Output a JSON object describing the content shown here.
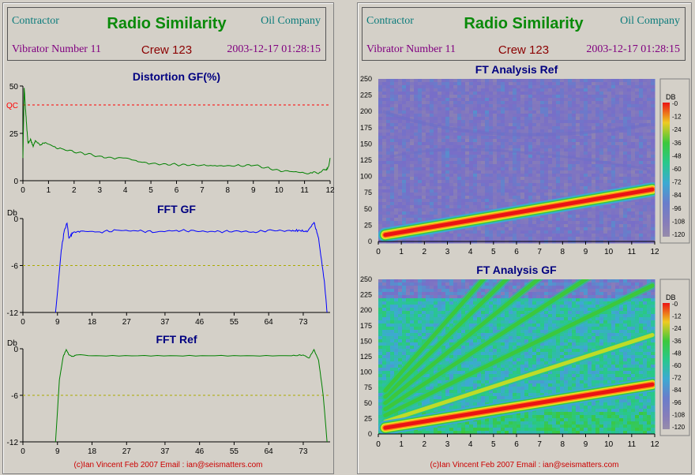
{
  "header": {
    "contractor": "Contractor",
    "title": "Radio Similarity",
    "company": "Oil Company",
    "vibrator": "Vibrator Number 11",
    "crew": "Crew 123",
    "timestamp": "2003-12-17 01:28:15"
  },
  "footer": "(c)Ian Vincent Feb 2007 Email : ian@seismatters.com",
  "colors": {
    "background": "#d4d0c8",
    "qc_line": "#ff0000",
    "distortion": "#008000",
    "fft_gf": "#0000ff",
    "fft_ref": "#008000",
    "threshold": "#aaaa00"
  },
  "chart_data": [
    {
      "type": "line",
      "title": "Distortion GF(%)",
      "ylabel": "",
      "xlim": [
        0,
        12
      ],
      "ylim": [
        0,
        50
      ],
      "x_ticks": [
        "0",
        "1",
        "2",
        "3",
        "4",
        "5",
        "6",
        "7",
        "8",
        "9",
        "10",
        "11",
        "12"
      ],
      "y_ticks": [
        "0",
        "25",
        "50"
      ],
      "qc_label": "QC",
      "qc_value": 40,
      "x": [
        0,
        0.05,
        0.1,
        0.15,
        0.2,
        0.3,
        0.4,
        0.5,
        0.7,
        0.9,
        1.2,
        1.5,
        2,
        2.5,
        3,
        3.5,
        4,
        4.5,
        5,
        5.5,
        6,
        6.5,
        7,
        7.5,
        8,
        8.5,
        9,
        9.5,
        10,
        10.5,
        11,
        11.3,
        11.6,
        11.85,
        11.95,
        12
      ],
      "values": [
        12,
        49,
        38,
        28,
        20,
        22,
        18,
        21,
        19,
        20,
        18,
        17,
        15,
        14,
        13,
        12,
        12,
        10,
        9,
        9,
        8.5,
        8,
        8.2,
        8,
        8,
        7.8,
        8,
        7,
        5.5,
        4.8,
        4,
        4,
        4.5,
        6,
        8,
        12
      ],
      "grid": false
    },
    {
      "type": "line",
      "title": "FFT GF",
      "ylabel": "Db",
      "xlim": [
        0,
        80
      ],
      "ylim": [
        -12,
        0
      ],
      "x_ticks": [
        "0",
        "9",
        "18",
        "27",
        "37",
        "46",
        "55",
        "64",
        "73"
      ],
      "y_ticks": [
        "0",
        "-6",
        "-12"
      ],
      "threshold": -6,
      "x": [
        8.5,
        10,
        10.8,
        11.5,
        12,
        13,
        15,
        20,
        25,
        30,
        35,
        40,
        45,
        50,
        55,
        60,
        65,
        70,
        72,
        74,
        75.8,
        77,
        78.5,
        79.2
      ],
      "values": [
        -12,
        -4,
        -1.5,
        -0.6,
        -2.5,
        -1.8,
        -1.6,
        -1.7,
        -1.5,
        -1.6,
        -1.7,
        -1.5,
        -1.6,
        -1.7,
        -1.6,
        -1.7,
        -1.5,
        -1.6,
        -1.5,
        -1.7,
        -0.5,
        -2.5,
        -8,
        -12
      ],
      "grid": false
    },
    {
      "type": "line",
      "title": "FFT Ref",
      "ylabel": "Db",
      "xlim": [
        0,
        80
      ],
      "ylim": [
        -12,
        0
      ],
      "x_ticks": [
        "0",
        "9",
        "18",
        "27",
        "37",
        "46",
        "55",
        "64",
        "73"
      ],
      "y_ticks": [
        "0",
        "-6",
        "-12"
      ],
      "threshold": -6,
      "x": [
        8.5,
        9.5,
        10.5,
        11.3,
        12,
        13,
        14,
        20,
        30,
        40,
        50,
        60,
        70,
        73,
        74.5,
        75.8,
        77,
        78.2,
        79.2
      ],
      "values": [
        -12,
        -4,
        -1,
        -0.1,
        -0.8,
        -1,
        -0.8,
        -0.9,
        -0.9,
        -0.9,
        -0.9,
        -0.9,
        -0.9,
        -0.8,
        -1.2,
        -0.1,
        -1.5,
        -6,
        -12
      ],
      "grid": false
    },
    {
      "type": "heatmap",
      "title": "FT Analysis Ref",
      "xlim": [
        0,
        12
      ],
      "ylim": [
        0,
        250
      ],
      "x_ticks": [
        "0",
        "1",
        "2",
        "3",
        "4",
        "5",
        "6",
        "7",
        "8",
        "9",
        "10",
        "11",
        "12"
      ],
      "y_ticks": [
        "0",
        "25",
        "50",
        "75",
        "100",
        "125",
        "150",
        "175",
        "200",
        "225",
        "250"
      ],
      "legend_title": "DB",
      "legend_ticks": [
        "-0",
        "-12",
        "-24",
        "-36",
        "-48",
        "-60",
        "-72",
        "-84",
        "-96",
        "-108",
        "-120"
      ],
      "sweep": {
        "start_time": 0.3,
        "start_freq": 10,
        "end_time": 11.9,
        "end_freq": 80
      },
      "harmonics": []
    },
    {
      "type": "heatmap",
      "title": "FT Analysis GF",
      "xlim": [
        0,
        12
      ],
      "ylim": [
        0,
        250
      ],
      "x_ticks": [
        "0",
        "1",
        "2",
        "3",
        "4",
        "5",
        "6",
        "7",
        "8",
        "9",
        "10",
        "11",
        "12"
      ],
      "y_ticks": [
        "0",
        "25",
        "50",
        "75",
        "100",
        "125",
        "150",
        "175",
        "200",
        "225",
        "250"
      ],
      "legend_title": "DB",
      "legend_ticks": [
        "-0",
        "-12",
        "-24",
        "-36",
        "-48",
        "-60",
        "-72",
        "-84",
        "-96",
        "-108",
        "-120"
      ],
      "sweep": {
        "start_time": 0.3,
        "start_freq": 10,
        "end_time": 11.9,
        "end_freq": 80
      },
      "harmonics": [
        2,
        3,
        4,
        5,
        6,
        7
      ]
    }
  ]
}
